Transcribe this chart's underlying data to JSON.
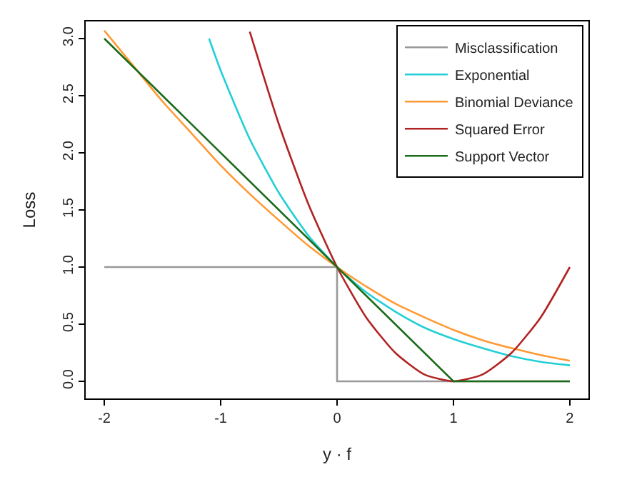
{
  "chart_data": {
    "type": "line",
    "xlabel": "y · f",
    "ylabel": "Loss",
    "xlim": [
      -2.16,
      2.16
    ],
    "ylim": [
      -0.15,
      3.15
    ],
    "xticks": [
      -2,
      -1,
      0,
      1,
      2
    ],
    "yticks": [
      {
        "value": 0,
        "label": "0.0"
      },
      {
        "value": 0.5,
        "label": "0.5"
      },
      {
        "value": 1,
        "label": "1.0"
      },
      {
        "value": 1.5,
        "label": "1.5"
      },
      {
        "value": 2,
        "label": "2.0"
      },
      {
        "value": 2.5,
        "label": "2.5"
      },
      {
        "value": 3,
        "label": "3.0"
      }
    ],
    "grid": false,
    "legend": "top right",
    "marker": "none",
    "line_style": "solid",
    "series": [
      {
        "name": "Misclassification",
        "color": "#999999",
        "x": [
          -2,
          0,
          0,
          2
        ],
        "values": [
          1,
          1,
          0,
          0
        ]
      },
      {
        "name": "Exponential",
        "color": "#22cfd6",
        "x": [
          -1.1,
          -1,
          -0.75,
          -0.5,
          -0.25,
          0,
          0.25,
          0.5,
          0.75,
          1,
          1.25,
          1.5,
          1.75,
          2
        ],
        "values": [
          3.0,
          2.72,
          2.12,
          1.65,
          1.28,
          1,
          0.78,
          0.61,
          0.47,
          0.37,
          0.29,
          0.22,
          0.17,
          0.14
        ]
      },
      {
        "name": "Binomial Deviance",
        "color": "#ff9933",
        "x": [
          -2,
          -1.75,
          -1.5,
          -1.25,
          -1,
          -0.75,
          -0.5,
          -0.25,
          0,
          0.25,
          0.5,
          0.75,
          1,
          1.25,
          1.5,
          1.75,
          2
        ],
        "values": [
          3.07,
          2.76,
          2.45,
          2.17,
          1.89,
          1.64,
          1.41,
          1.19,
          1,
          0.83,
          0.68,
          0.56,
          0.45,
          0.36,
          0.29,
          0.23,
          0.18
        ]
      },
      {
        "name": "Squared Error",
        "color": "#b22222",
        "x": [
          -0.75,
          -0.5,
          -0.25,
          0,
          0.25,
          0.5,
          0.75,
          1,
          1.25,
          1.5,
          1.75,
          2
        ],
        "values": [
          3.06,
          2.25,
          1.56,
          1,
          0.56,
          0.25,
          0.06,
          0,
          0.06,
          0.25,
          0.56,
          1
        ]
      },
      {
        "name": "Support Vector",
        "color": "#1a6b1a",
        "x": [
          -2,
          1,
          2
        ],
        "values": [
          3,
          0,
          0
        ]
      }
    ]
  }
}
